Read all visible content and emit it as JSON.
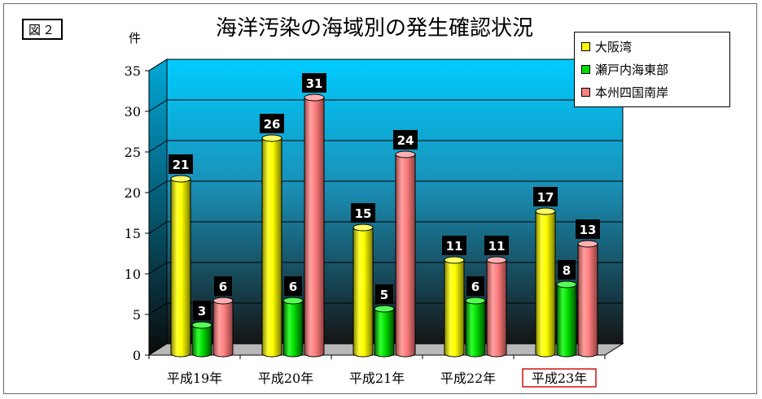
{
  "figure_label": "図２",
  "chart_data": {
    "type": "bar",
    "title": "海洋汚染の海域別の発生確認状況",
    "ylabel": "件",
    "xlabel": "",
    "categories": [
      "平成19年",
      "平成20年",
      "平成21年",
      "平成22年",
      "平成23年"
    ],
    "highlighted_category": "平成23年",
    "series": [
      {
        "name": "大阪湾",
        "color": "#ffff00",
        "values": [
          21,
          26,
          15,
          11,
          17
        ]
      },
      {
        "name": "瀬戸内海東部",
        "color": "#00dd00",
        "values": [
          3,
          6,
          5,
          6,
          8
        ]
      },
      {
        "name": "本州四国南岸",
        "color": "#ff8080",
        "values": [
          6,
          31,
          24,
          11,
          13
        ]
      }
    ],
    "ylim": [
      0,
      35
    ],
    "yticks": [
      "0",
      "5",
      "10",
      "15",
      "20",
      "25",
      "30",
      "35"
    ],
    "grid": true,
    "legend": "top-right",
    "data_labels": true,
    "style": "3d-cylinder"
  }
}
